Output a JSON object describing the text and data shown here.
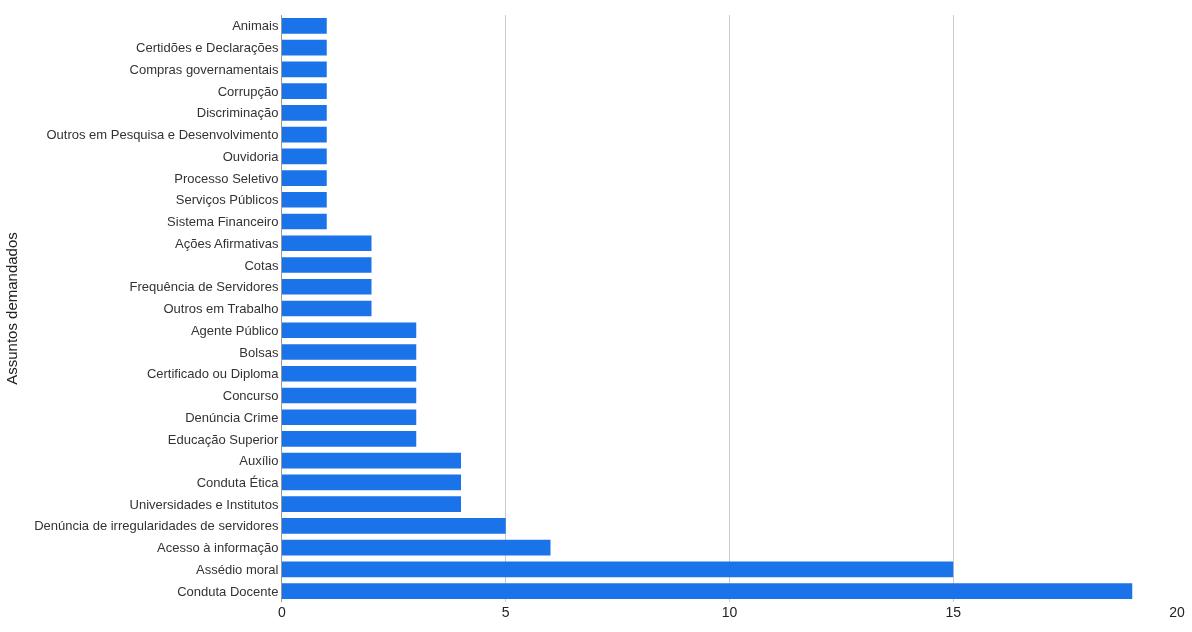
{
  "chart_data": {
    "type": "bar",
    "orientation": "horizontal",
    "ylabel": "Assuntos demandados",
    "categories": [
      "Animais",
      "Certidões e Declarações",
      "Compras governamentais",
      "Corrupção",
      "Discriminação",
      "Outros em Pesquisa e Desenvolvimento",
      "Ouvidoria",
      "Processo Seletivo",
      "Serviços Públicos",
      "Sistema Financeiro",
      "Ações Afirmativas",
      "Cotas",
      "Frequência de Servidores",
      "Outros em Trabalho",
      "Agente Público",
      "Bolsas",
      "Certificado ou Diploma",
      "Concurso",
      "Denúncia Crime",
      "Educação Superior",
      "Auxílio",
      "Conduta Ética",
      "Universidades e Institutos",
      "Denúncia de irregularidades de servidores",
      "Acesso à informação",
      "Assédio moral",
      "Conduta Docente"
    ],
    "values": [
      1,
      1,
      1,
      1,
      1,
      1,
      1,
      1,
      1,
      1,
      2,
      2,
      2,
      2,
      3,
      3,
      3,
      3,
      3,
      3,
      4,
      4,
      4,
      5,
      6,
      15,
      19
    ],
    "color": "#1a73e8",
    "xlim": [
      0,
      20
    ],
    "xticks": [
      0,
      5,
      10,
      15,
      20
    ],
    "grid": "x"
  }
}
